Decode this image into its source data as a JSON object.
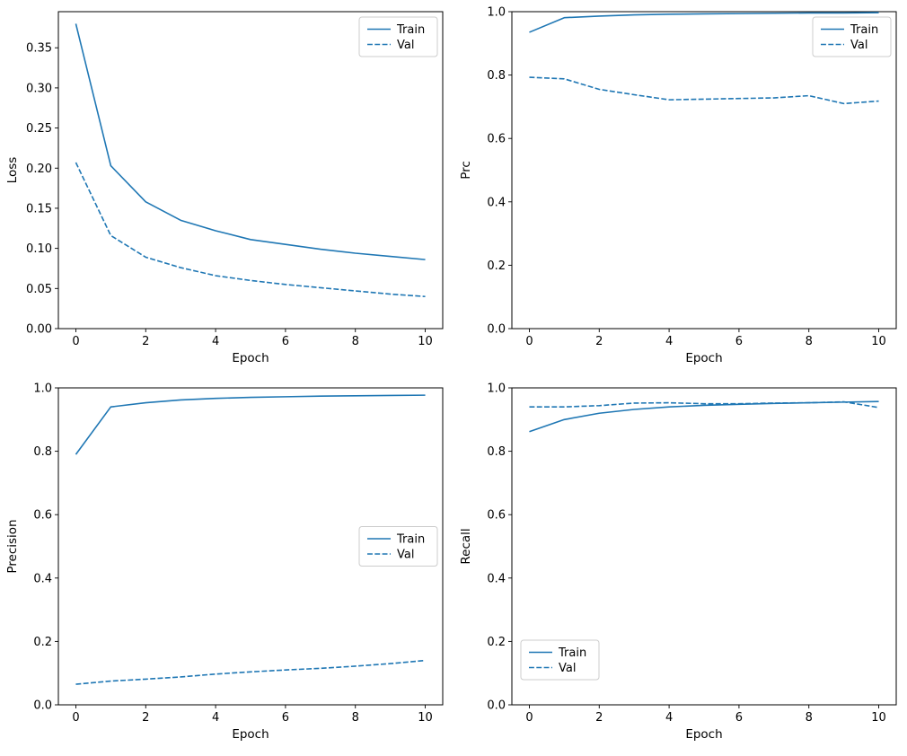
{
  "figure": {
    "background": "#ffffff",
    "accent_color": "#1f77b4",
    "spine_color": "#000000",
    "legend_border_color": "#cccccc"
  },
  "chart_data": [
    {
      "type": "line",
      "name": "loss-chart",
      "xlabel": "Epoch",
      "ylabel": "Loss",
      "x": [
        0,
        1,
        2,
        3,
        4,
        5,
        6,
        7,
        8,
        9,
        10
      ],
      "series": [
        {
          "name": "Train",
          "style": "solid",
          "values": [
            0.38,
            0.203,
            0.158,
            0.135,
            0.122,
            0.111,
            0.105,
            0.099,
            0.094,
            0.09,
            0.086
          ]
        },
        {
          "name": "Val",
          "style": "dashed",
          "values": [
            0.207,
            0.116,
            0.089,
            0.076,
            0.066,
            0.06,
            0.055,
            0.051,
            0.047,
            0.043,
            0.04
          ]
        }
      ],
      "xlim": [
        -0.5,
        10.5
      ],
      "ylim": [
        0.0,
        0.395
      ],
      "xticks": [
        {
          "value": 0,
          "label": "0"
        },
        {
          "value": 2,
          "label": "2"
        },
        {
          "value": 4,
          "label": "4"
        },
        {
          "value": 6,
          "label": "6"
        },
        {
          "value": 8,
          "label": "8"
        },
        {
          "value": 10,
          "label": "10"
        }
      ],
      "yticks": [
        {
          "value": 0.0,
          "label": "0.00"
        },
        {
          "value": 0.05,
          "label": "0.05"
        },
        {
          "value": 0.1,
          "label": "0.10"
        },
        {
          "value": 0.15,
          "label": "0.15"
        },
        {
          "value": 0.2,
          "label": "0.20"
        },
        {
          "value": 0.25,
          "label": "0.25"
        },
        {
          "value": 0.3,
          "label": "0.30"
        },
        {
          "value": 0.35,
          "label": "0.35"
        }
      ],
      "grid": false,
      "legend": {
        "position": "upper-right",
        "entries": [
          "Train",
          "Val"
        ]
      }
    },
    {
      "type": "line",
      "name": "prc-chart",
      "xlabel": "Epoch",
      "ylabel": "Prc",
      "x": [
        0,
        1,
        2,
        3,
        4,
        5,
        6,
        7,
        8,
        9,
        10
      ],
      "series": [
        {
          "name": "Train",
          "style": "solid",
          "values": [
            0.935,
            0.981,
            0.986,
            0.99,
            0.992,
            0.993,
            0.994,
            0.995,
            0.996,
            0.996,
            0.997
          ]
        },
        {
          "name": "Val",
          "style": "dashed",
          "values": [
            0.793,
            0.788,
            0.755,
            0.738,
            0.722,
            0.724,
            0.726,
            0.728,
            0.735,
            0.71,
            0.718
          ]
        }
      ],
      "xlim": [
        -0.5,
        10.5
      ],
      "ylim": [
        0.0,
        1.0
      ],
      "xticks": [
        {
          "value": 0,
          "label": "0"
        },
        {
          "value": 2,
          "label": "2"
        },
        {
          "value": 4,
          "label": "4"
        },
        {
          "value": 6,
          "label": "6"
        },
        {
          "value": 8,
          "label": "8"
        },
        {
          "value": 10,
          "label": "10"
        }
      ],
      "yticks": [
        {
          "value": 0.0,
          "label": "0.0"
        },
        {
          "value": 0.2,
          "label": "0.2"
        },
        {
          "value": 0.4,
          "label": "0.4"
        },
        {
          "value": 0.6,
          "label": "0.6"
        },
        {
          "value": 0.8,
          "label": "0.8"
        },
        {
          "value": 1.0,
          "label": "1.0"
        }
      ],
      "grid": false,
      "legend": {
        "position": "upper-right",
        "entries": [
          "Train",
          "Val"
        ]
      }
    },
    {
      "type": "line",
      "name": "precision-chart",
      "xlabel": "Epoch",
      "ylabel": "Precision",
      "x": [
        0,
        1,
        2,
        3,
        4,
        5,
        6,
        7,
        8,
        9,
        10
      ],
      "series": [
        {
          "name": "Train",
          "style": "solid",
          "values": [
            0.79,
            0.94,
            0.953,
            0.962,
            0.967,
            0.97,
            0.972,
            0.974,
            0.975,
            0.976,
            0.977
          ]
        },
        {
          "name": "Val",
          "style": "dashed",
          "values": [
            0.065,
            0.075,
            0.081,
            0.088,
            0.097,
            0.104,
            0.11,
            0.115,
            0.122,
            0.13,
            0.14
          ]
        }
      ],
      "xlim": [
        -0.5,
        10.5
      ],
      "ylim": [
        0.0,
        1.0
      ],
      "xticks": [
        {
          "value": 0,
          "label": "0"
        },
        {
          "value": 2,
          "label": "2"
        },
        {
          "value": 4,
          "label": "4"
        },
        {
          "value": 6,
          "label": "6"
        },
        {
          "value": 8,
          "label": "8"
        },
        {
          "value": 10,
          "label": "10"
        }
      ],
      "yticks": [
        {
          "value": 0.0,
          "label": "0.0"
        },
        {
          "value": 0.2,
          "label": "0.2"
        },
        {
          "value": 0.4,
          "label": "0.4"
        },
        {
          "value": 0.6,
          "label": "0.6"
        },
        {
          "value": 0.8,
          "label": "0.8"
        },
        {
          "value": 1.0,
          "label": "1.0"
        }
      ],
      "grid": false,
      "legend": {
        "position": "center-right",
        "entries": [
          "Train",
          "Val"
        ]
      }
    },
    {
      "type": "line",
      "name": "recall-chart",
      "xlabel": "Epoch",
      "ylabel": "Recall",
      "x": [
        0,
        1,
        2,
        3,
        4,
        5,
        6,
        7,
        8,
        9,
        10
      ],
      "series": [
        {
          "name": "Train",
          "style": "solid",
          "values": [
            0.862,
            0.9,
            0.92,
            0.932,
            0.94,
            0.945,
            0.948,
            0.951,
            0.953,
            0.955,
            0.957
          ]
        },
        {
          "name": "Val",
          "style": "dashed",
          "values": [
            0.94,
            0.94,
            0.944,
            0.952,
            0.953,
            0.95,
            0.95,
            0.952,
            0.953,
            0.956,
            0.938
          ]
        }
      ],
      "xlim": [
        -0.5,
        10.5
      ],
      "ylim": [
        0.0,
        1.0
      ],
      "xticks": [
        {
          "value": 0,
          "label": "0"
        },
        {
          "value": 2,
          "label": "2"
        },
        {
          "value": 4,
          "label": "4"
        },
        {
          "value": 6,
          "label": "6"
        },
        {
          "value": 8,
          "label": "8"
        },
        {
          "value": 10,
          "label": "10"
        }
      ],
      "yticks": [
        {
          "value": 0.0,
          "label": "0.0"
        },
        {
          "value": 0.2,
          "label": "0.2"
        },
        {
          "value": 0.4,
          "label": "0.4"
        },
        {
          "value": 0.6,
          "label": "0.6"
        },
        {
          "value": 0.8,
          "label": "0.8"
        },
        {
          "value": 1.0,
          "label": "1.0"
        }
      ],
      "grid": false,
      "legend": {
        "position": "lower-left",
        "entries": [
          "Train",
          "Val"
        ]
      }
    }
  ]
}
